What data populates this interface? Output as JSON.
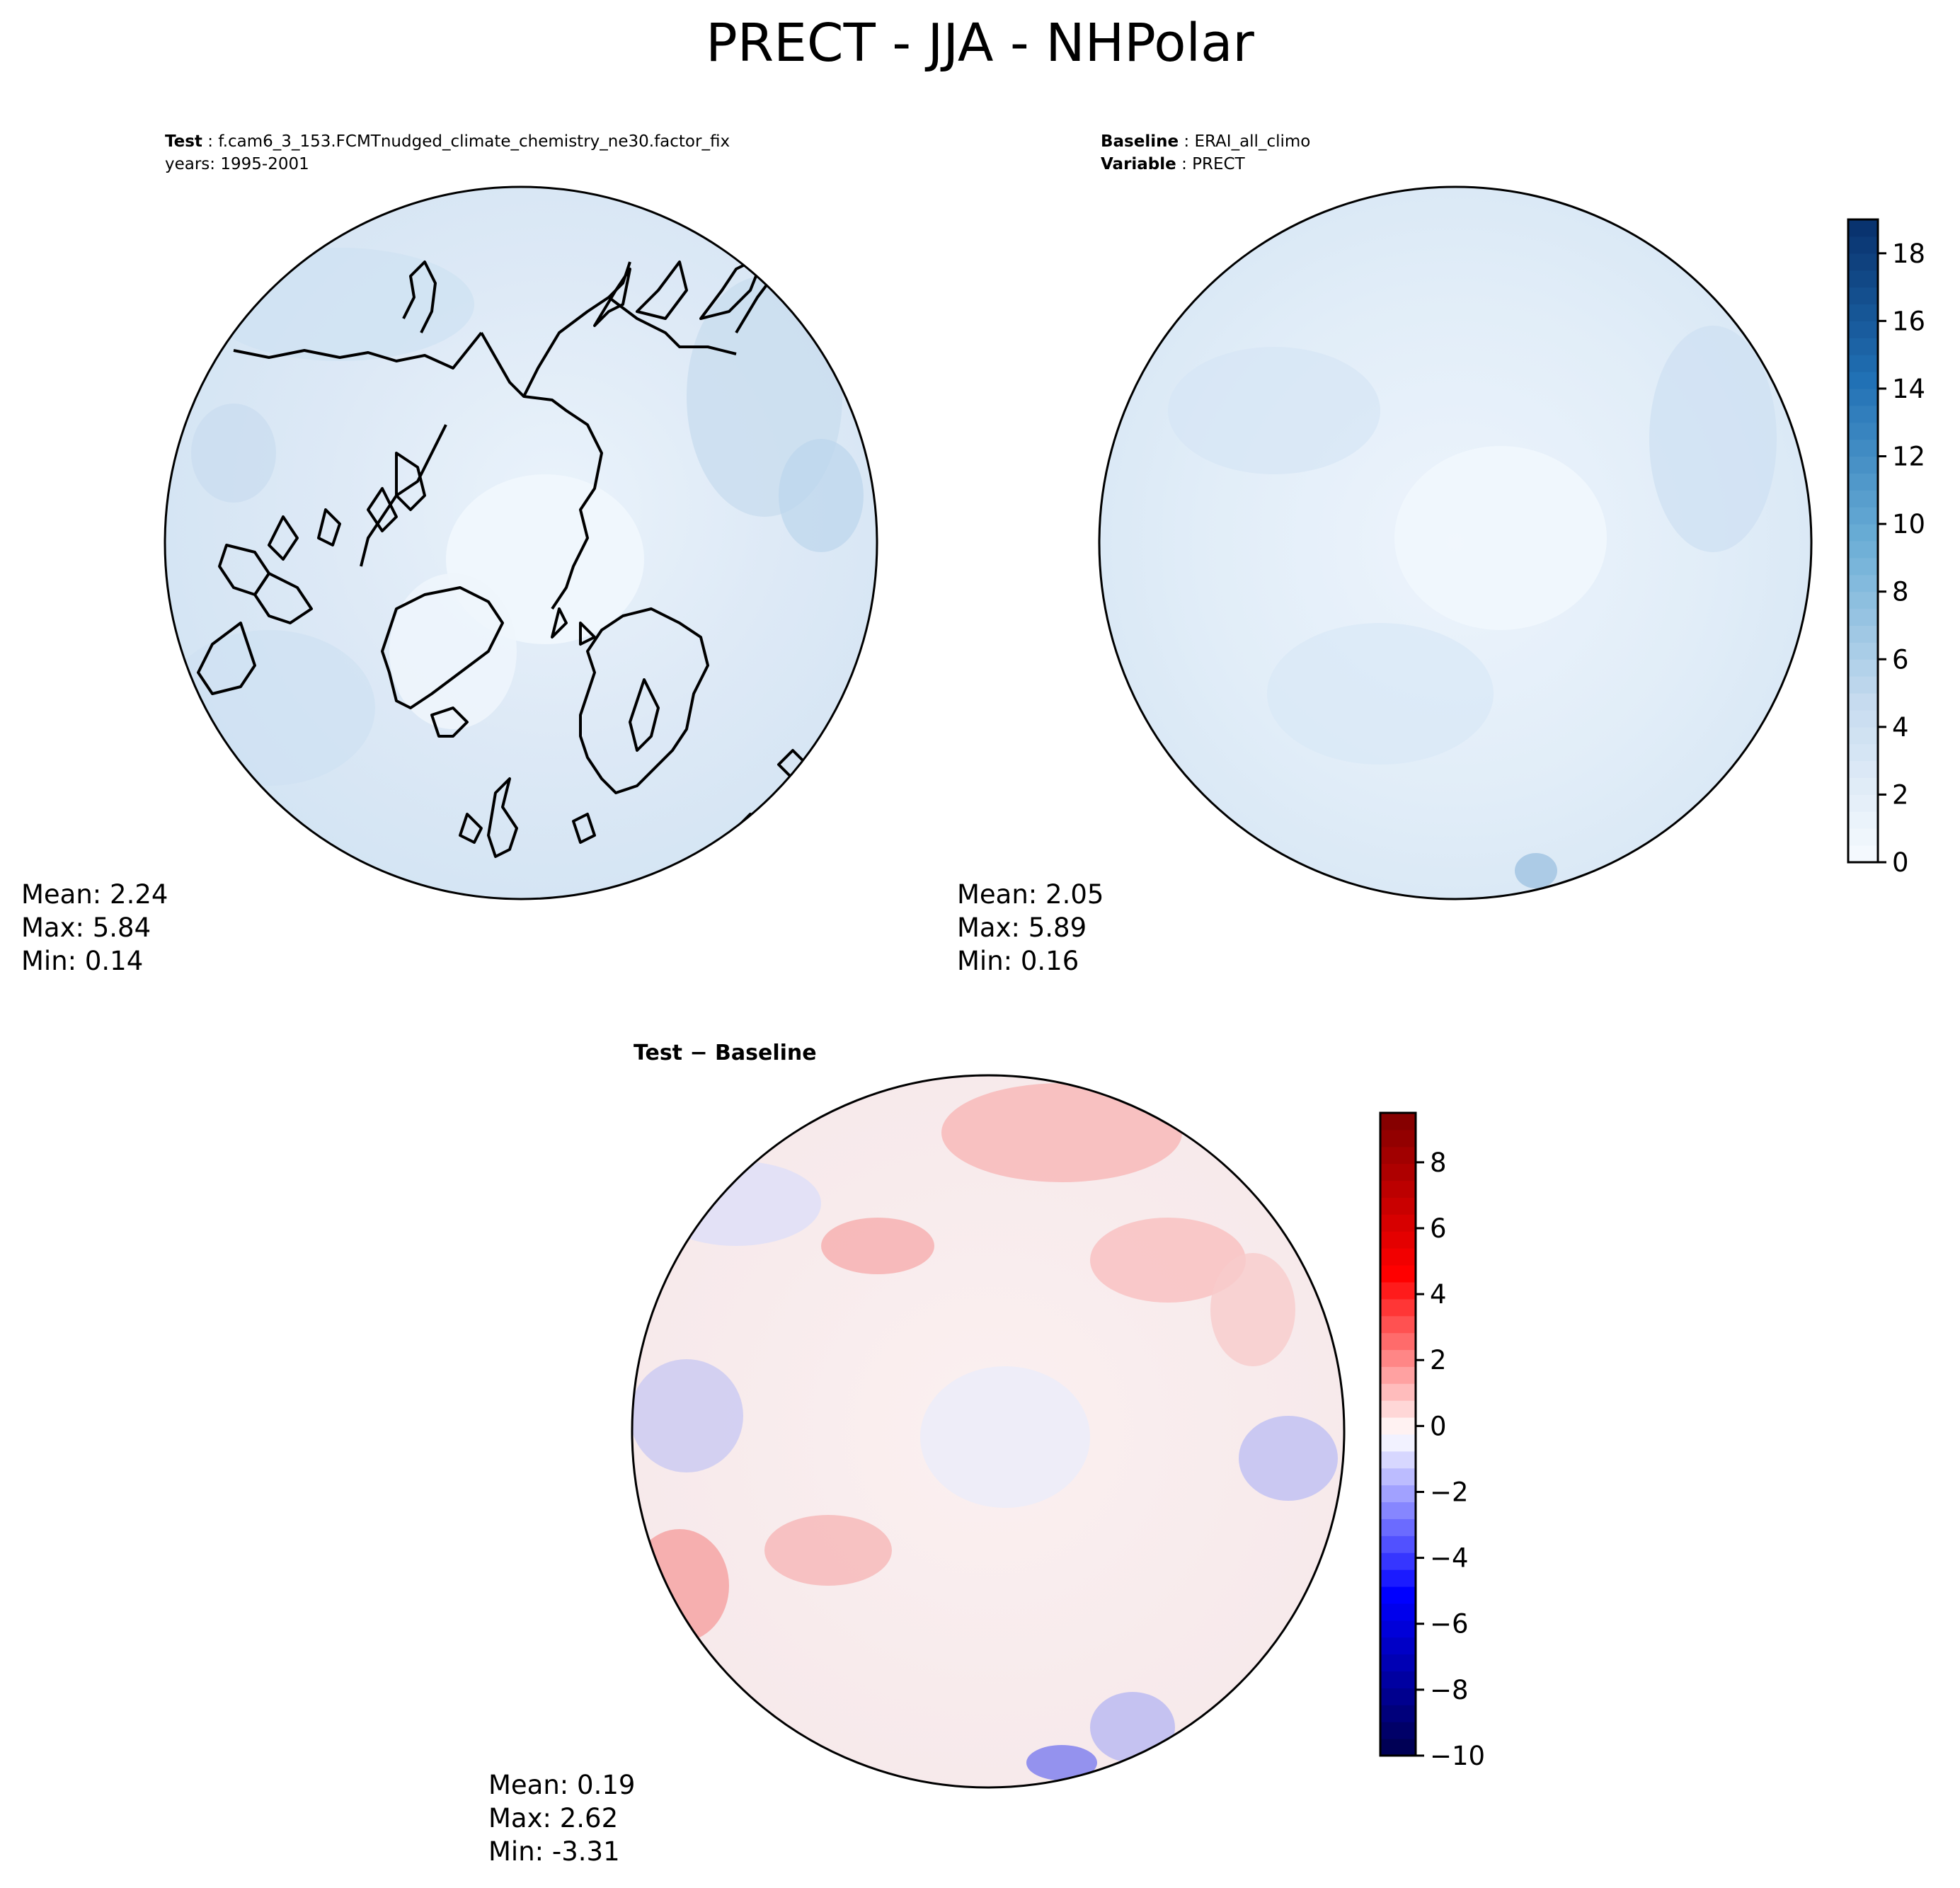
{
  "figure": {
    "title": "PRECT - JJA - NHPolar"
  },
  "panels": {
    "test": {
      "label_key": "Test",
      "label_value": "f.cam6_3_153.FCMTnudged_climate_chemistry_ne30.factor_fix",
      "years": "years: 1995-2001",
      "mean": "Mean:  2.24",
      "max": "Max:  5.84",
      "min": "Min:  0.14"
    },
    "baseline": {
      "label_key": "Baseline",
      "label_value": "ERAI_all_climo",
      "variable_key": "Variable",
      "variable_value": "PRECT",
      "mean": "Mean:  2.05",
      "max": "Max:  5.89",
      "min": "Min:  0.16"
    },
    "diff": {
      "title": "Test − Baseline",
      "mean": "Mean:  0.19",
      "max": "Max:  2.62",
      "min": "Min: -3.31"
    }
  },
  "chart_data": [
    {
      "type": "heatmap",
      "name": "Test",
      "projection": "north-polar-stereographic",
      "stats": {
        "mean": 2.24,
        "max": 5.84,
        "min": 0.14
      },
      "colormap": "Blues",
      "color_range": [
        0,
        19
      ]
    },
    {
      "type": "heatmap",
      "name": "Baseline",
      "projection": "north-polar-stereographic",
      "stats": {
        "mean": 2.05,
        "max": 5.89,
        "min": 0.16
      },
      "colormap": "Blues",
      "color_range": [
        0,
        19
      ],
      "colorbar": {
        "ticks": [
          0,
          2,
          4,
          6,
          8,
          10,
          12,
          14,
          16,
          18
        ],
        "levels": 19
      }
    },
    {
      "type": "heatmap",
      "name": "Test − Baseline",
      "projection": "north-polar-stereographic",
      "stats": {
        "mean": 0.19,
        "max": 2.62,
        "min": -3.31
      },
      "colormap": "seismic",
      "color_range": [
        -10,
        9.5
      ],
      "colorbar": {
        "ticks": [
          -10,
          -8,
          -6,
          -4,
          -2,
          0,
          2,
          4,
          6,
          8
        ]
      }
    }
  ],
  "colors": {
    "blues_low": "#f7fbff",
    "blues_high": "#08306b",
    "seismic_low": "#00004c",
    "seismic_mid": "#ffffff",
    "seismic_high": "#7f0000"
  }
}
